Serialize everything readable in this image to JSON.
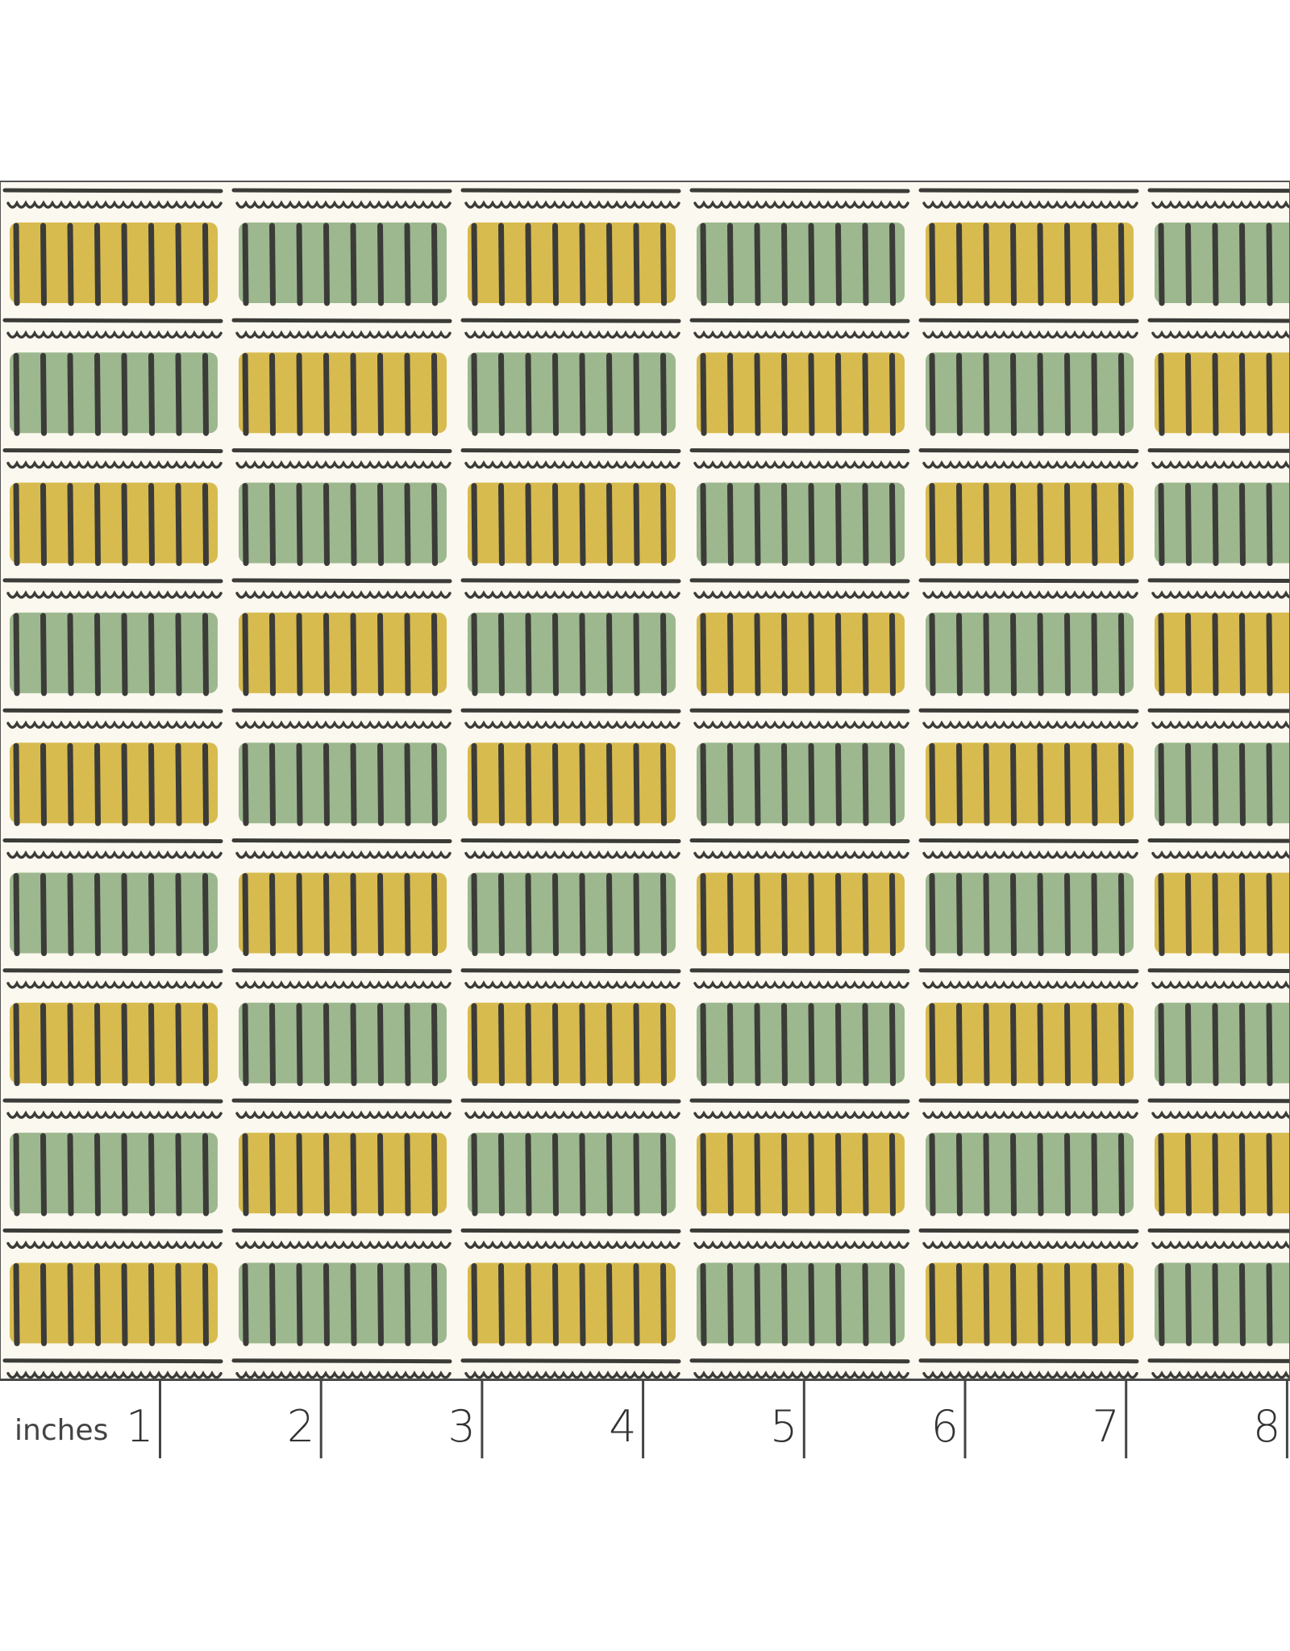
{
  "ruler": {
    "unit": "inches",
    "ticks": [
      1,
      2,
      3,
      4,
      5,
      6,
      7,
      8
    ]
  }
}
